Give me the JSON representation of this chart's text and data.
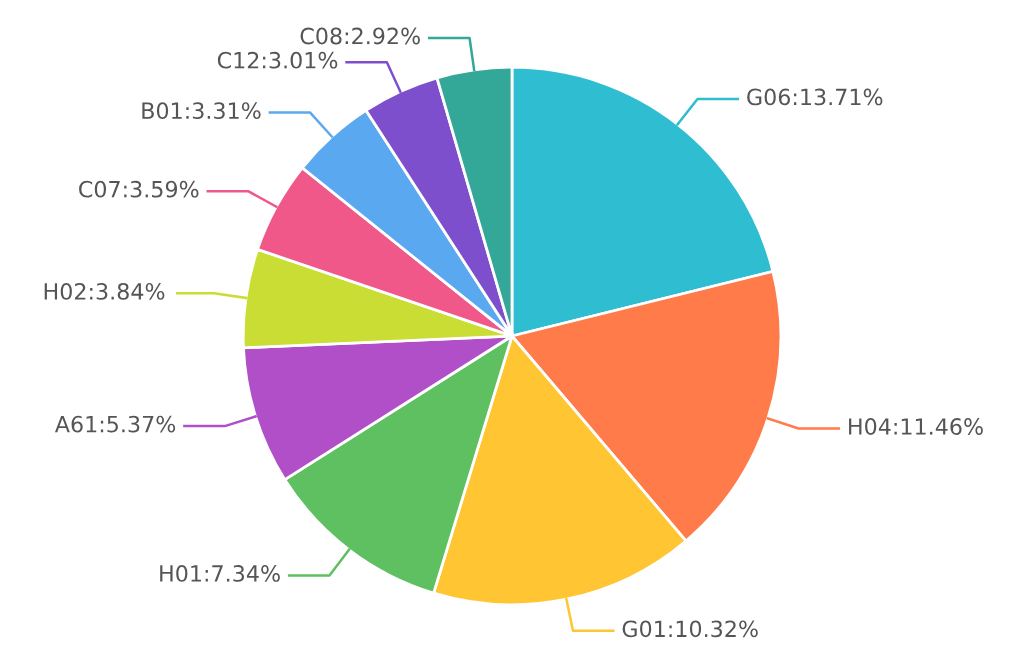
{
  "chart_data": {
    "type": "pie",
    "categories": [
      "G06",
      "H04",
      "G01",
      "H01",
      "A61",
      "H02",
      "C07",
      "B01",
      "C12",
      "C08"
    ],
    "values": [
      13.71,
      11.46,
      10.32,
      7.34,
      5.37,
      3.84,
      3.59,
      3.31,
      3.01,
      2.92
    ],
    "value_labels": [
      ":13.71%",
      ":11.46%",
      ":10.32%",
      ":7.34%",
      ":5.37%",
      ":3.84%",
      ":3.59%",
      ":3.31%",
      ":3.01%",
      ":2.92%"
    ],
    "colors": [
      "#2ebdd1",
      "#ff7b4a",
      "#ffc533",
      "#5ec060",
      "#b04fc8",
      "#c9dd34",
      "#f0588a",
      "#5aa8f0",
      "#7e4fcc",
      "#33a898"
    ],
    "legend": false
  }
}
